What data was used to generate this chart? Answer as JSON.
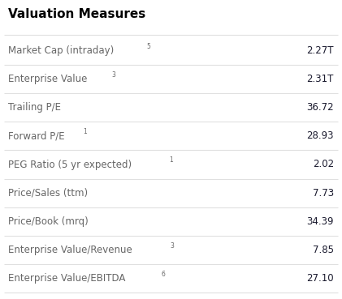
{
  "title": "Valuation Measures",
  "rows": [
    {
      "label": "Market Cap (intraday)",
      "superscript": "5",
      "value": "2.27T"
    },
    {
      "label": "Enterprise Value",
      "superscript": "3",
      "value": "2.31T"
    },
    {
      "label": "Trailing P/E",
      "superscript": "",
      "value": "36.72"
    },
    {
      "label": "Forward P/E",
      "superscript": "1",
      "value": "28.93"
    },
    {
      "label": "PEG Ratio (5 yr expected)",
      "superscript": "1",
      "value": "2.02"
    },
    {
      "label": "Price/Sales (ttm)",
      "superscript": "",
      "value": "7.73"
    },
    {
      "label": "Price/Book (mrq)",
      "superscript": "",
      "value": "34.39"
    },
    {
      "label": "Enterprise Value/Revenue",
      "superscript": "3",
      "value": "7.85"
    },
    {
      "label": "Enterprise Value/EBITDA",
      "superscript": "6",
      "value": "27.10"
    }
  ],
  "background_color": "#ffffff",
  "title_color": "#000000",
  "label_color": "#666666",
  "value_color": "#1a1a2e",
  "divider_color": "#e0e0e0",
  "title_fontsize": 11,
  "label_fontsize": 8.5,
  "value_fontsize": 8.5,
  "superscript_fontsize": 5.5
}
